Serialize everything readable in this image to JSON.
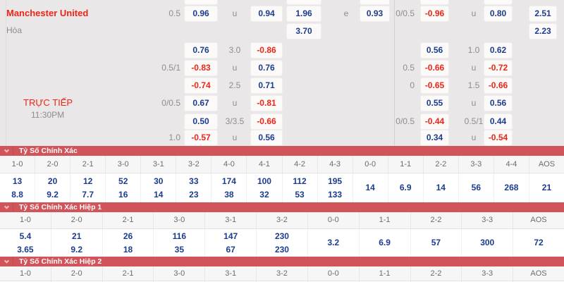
{
  "colors": {
    "accent_red": "#ee2416",
    "odds_blue": "#1b3c8e",
    "bar_red": "#d05459",
    "panel_bg": "#e9e7e7"
  },
  "odds_panel": {
    "team": "Manchester United",
    "draw": "Hòa",
    "live": "TRỰC TIẾP",
    "time": "11:30PM",
    "rows": [
      {
        "cells": [
          {
            "slot": "h",
            "kind": "lbl",
            "text": "0.5"
          },
          {
            "slot": "a",
            "kind": "pos",
            "text": "0.96"
          },
          {
            "slot": "m",
            "kind": "lbl",
            "text": "u"
          },
          {
            "slot": "b",
            "kind": "pos",
            "text": "0.94"
          },
          {
            "slot": "c",
            "kind": "pos",
            "text": "1.96"
          },
          {
            "slot": "e",
            "kind": "lbl",
            "text": "e"
          },
          {
            "slot": "d",
            "kind": "pos",
            "text": "0.93"
          },
          {
            "slot": "rh",
            "kind": "lbl",
            "text": "0/0.5"
          },
          {
            "slot": "ra",
            "kind": "neg",
            "text": "-0.96"
          },
          {
            "slot": "rm",
            "kind": "lbl",
            "text": "u"
          },
          {
            "slot": "rb",
            "kind": "pos",
            "text": "0.80"
          },
          {
            "slot": "rc",
            "kind": "pos",
            "text": "2.51"
          }
        ]
      },
      {
        "cells": [
          {
            "slot": "c",
            "kind": "pos",
            "text": "3.70"
          },
          {
            "slot": "rc",
            "kind": "pos",
            "text": "2.23"
          }
        ]
      },
      {
        "cells": [
          {
            "slot": "a",
            "kind": "pos",
            "text": "0.76"
          },
          {
            "slot": "m",
            "kind": "lbl",
            "text": "3.0"
          },
          {
            "slot": "b",
            "kind": "neg",
            "text": "-0.86"
          },
          {
            "slot": "ra",
            "kind": "pos",
            "text": "0.56"
          },
          {
            "slot": "rm",
            "kind": "lbl",
            "text": "1.0"
          },
          {
            "slot": "rb",
            "kind": "pos",
            "text": "0.62"
          }
        ]
      },
      {
        "cells": [
          {
            "slot": "h",
            "kind": "lbl",
            "text": "0.5/1"
          },
          {
            "slot": "a",
            "kind": "neg",
            "text": "-0.83"
          },
          {
            "slot": "m",
            "kind": "lbl",
            "text": "u"
          },
          {
            "slot": "b",
            "kind": "pos",
            "text": "0.76"
          },
          {
            "slot": "rh",
            "kind": "lbl",
            "text": "0.5"
          },
          {
            "slot": "ra",
            "kind": "neg",
            "text": "-0.66"
          },
          {
            "slot": "rm",
            "kind": "lbl",
            "text": "u"
          },
          {
            "slot": "rb",
            "kind": "neg",
            "text": "-0.72"
          }
        ]
      },
      {
        "cells": [
          {
            "slot": "a",
            "kind": "neg",
            "text": "-0.74"
          },
          {
            "slot": "m",
            "kind": "lbl",
            "text": "2.5"
          },
          {
            "slot": "b",
            "kind": "pos",
            "text": "0.71"
          },
          {
            "slot": "rh",
            "kind": "lbl",
            "text": "0"
          },
          {
            "slot": "ra",
            "kind": "neg",
            "text": "-0.65"
          },
          {
            "slot": "rm",
            "kind": "lbl",
            "text": "1.5"
          },
          {
            "slot": "rb",
            "kind": "neg",
            "text": "-0.66"
          }
        ]
      },
      {
        "cells": [
          {
            "slot": "h",
            "kind": "lbl",
            "text": "0/0.5"
          },
          {
            "slot": "a",
            "kind": "pos",
            "text": "0.67"
          },
          {
            "slot": "m",
            "kind": "lbl",
            "text": "u"
          },
          {
            "slot": "b",
            "kind": "neg",
            "text": "-0.81"
          },
          {
            "slot": "ra",
            "kind": "pos",
            "text": "0.55"
          },
          {
            "slot": "rm",
            "kind": "lbl",
            "text": "u"
          },
          {
            "slot": "rb",
            "kind": "pos",
            "text": "0.56"
          }
        ]
      },
      {
        "cells": [
          {
            "slot": "a",
            "kind": "pos",
            "text": "0.50"
          },
          {
            "slot": "m",
            "kind": "lbl",
            "text": "3/3.5"
          },
          {
            "slot": "b",
            "kind": "neg",
            "text": "-0.66"
          },
          {
            "slot": "rh",
            "kind": "lbl",
            "text": "0/0.5"
          },
          {
            "slot": "ra",
            "kind": "neg",
            "text": "-0.44"
          },
          {
            "slot": "rm",
            "kind": "lbl",
            "text": "0.5/1"
          },
          {
            "slot": "rb",
            "kind": "pos",
            "text": "0.44"
          }
        ]
      },
      {
        "cells": [
          {
            "slot": "h",
            "kind": "lbl",
            "text": "1.0"
          },
          {
            "slot": "a",
            "kind": "neg",
            "text": "-0.57"
          },
          {
            "slot": "m",
            "kind": "lbl",
            "text": "u"
          },
          {
            "slot": "b",
            "kind": "pos",
            "text": "0.56"
          },
          {
            "slot": "ra",
            "kind": "pos",
            "text": "0.34"
          },
          {
            "slot": "rm",
            "kind": "lbl",
            "text": "u"
          },
          {
            "slot": "rb",
            "kind": "neg",
            "text": "-0.54"
          }
        ]
      }
    ]
  },
  "score_tables": [
    {
      "title": "Tỷ Số Chính Xác",
      "columns": [
        {
          "score": "1-0",
          "values": [
            "13",
            "8.8"
          ]
        },
        {
          "score": "2-0",
          "values": [
            "20",
            "9.2"
          ]
        },
        {
          "score": "2-1",
          "values": [
            "12",
            "7.7"
          ]
        },
        {
          "score": "3-0",
          "values": [
            "52",
            "16"
          ]
        },
        {
          "score": "3-1",
          "values": [
            "30",
            "14"
          ]
        },
        {
          "score": "3-2",
          "values": [
            "33",
            "23"
          ]
        },
        {
          "score": "4-0",
          "values": [
            "174",
            "38"
          ]
        },
        {
          "score": "4-1",
          "values": [
            "100",
            "32"
          ]
        },
        {
          "score": "4-2",
          "values": [
            "112",
            "53"
          ]
        },
        {
          "score": "4-3",
          "values": [
            "195",
            "133"
          ]
        },
        {
          "score": "0-0",
          "values": [
            "14"
          ]
        },
        {
          "score": "1-1",
          "values": [
            "6.9"
          ]
        },
        {
          "score": "2-2",
          "values": [
            "14"
          ]
        },
        {
          "score": "3-3",
          "values": [
            "56"
          ]
        },
        {
          "score": "4-4",
          "values": [
            "268"
          ]
        },
        {
          "score": "AOS",
          "values": [
            "21"
          ]
        }
      ]
    },
    {
      "title": "Tỷ Số Chính Xác Hiệp 1",
      "columns": [
        {
          "score": "1-0",
          "values": [
            "5.4",
            "3.65"
          ]
        },
        {
          "score": "2-0",
          "values": [
            "21",
            "9.2"
          ]
        },
        {
          "score": "2-1",
          "values": [
            "26",
            "18"
          ]
        },
        {
          "score": "3-0",
          "values": [
            "116",
            "35"
          ]
        },
        {
          "score": "3-1",
          "values": [
            "147",
            "67"
          ]
        },
        {
          "score": "3-2",
          "values": [
            "230",
            "230"
          ]
        },
        {
          "score": "0-0",
          "values": [
            "3.2"
          ]
        },
        {
          "score": "1-1",
          "values": [
            "6.9"
          ]
        },
        {
          "score": "2-2",
          "values": [
            "57"
          ]
        },
        {
          "score": "3-3",
          "values": [
            "300"
          ]
        },
        {
          "score": "AOS",
          "values": [
            "72"
          ]
        }
      ]
    },
    {
      "title": "Tỷ Số Chính Xác Hiệp 2",
      "columns": [
        {
          "score": "1-0",
          "values": []
        },
        {
          "score": "2-0",
          "values": []
        },
        {
          "score": "2-1",
          "values": []
        },
        {
          "score": "3-0",
          "values": []
        },
        {
          "score": "3-1",
          "values": []
        },
        {
          "score": "3-2",
          "values": []
        },
        {
          "score": "0-0",
          "values": []
        },
        {
          "score": "1-1",
          "values": []
        },
        {
          "score": "2-2",
          "values": []
        },
        {
          "score": "3-3",
          "values": []
        },
        {
          "score": "AOS",
          "values": []
        }
      ]
    }
  ]
}
